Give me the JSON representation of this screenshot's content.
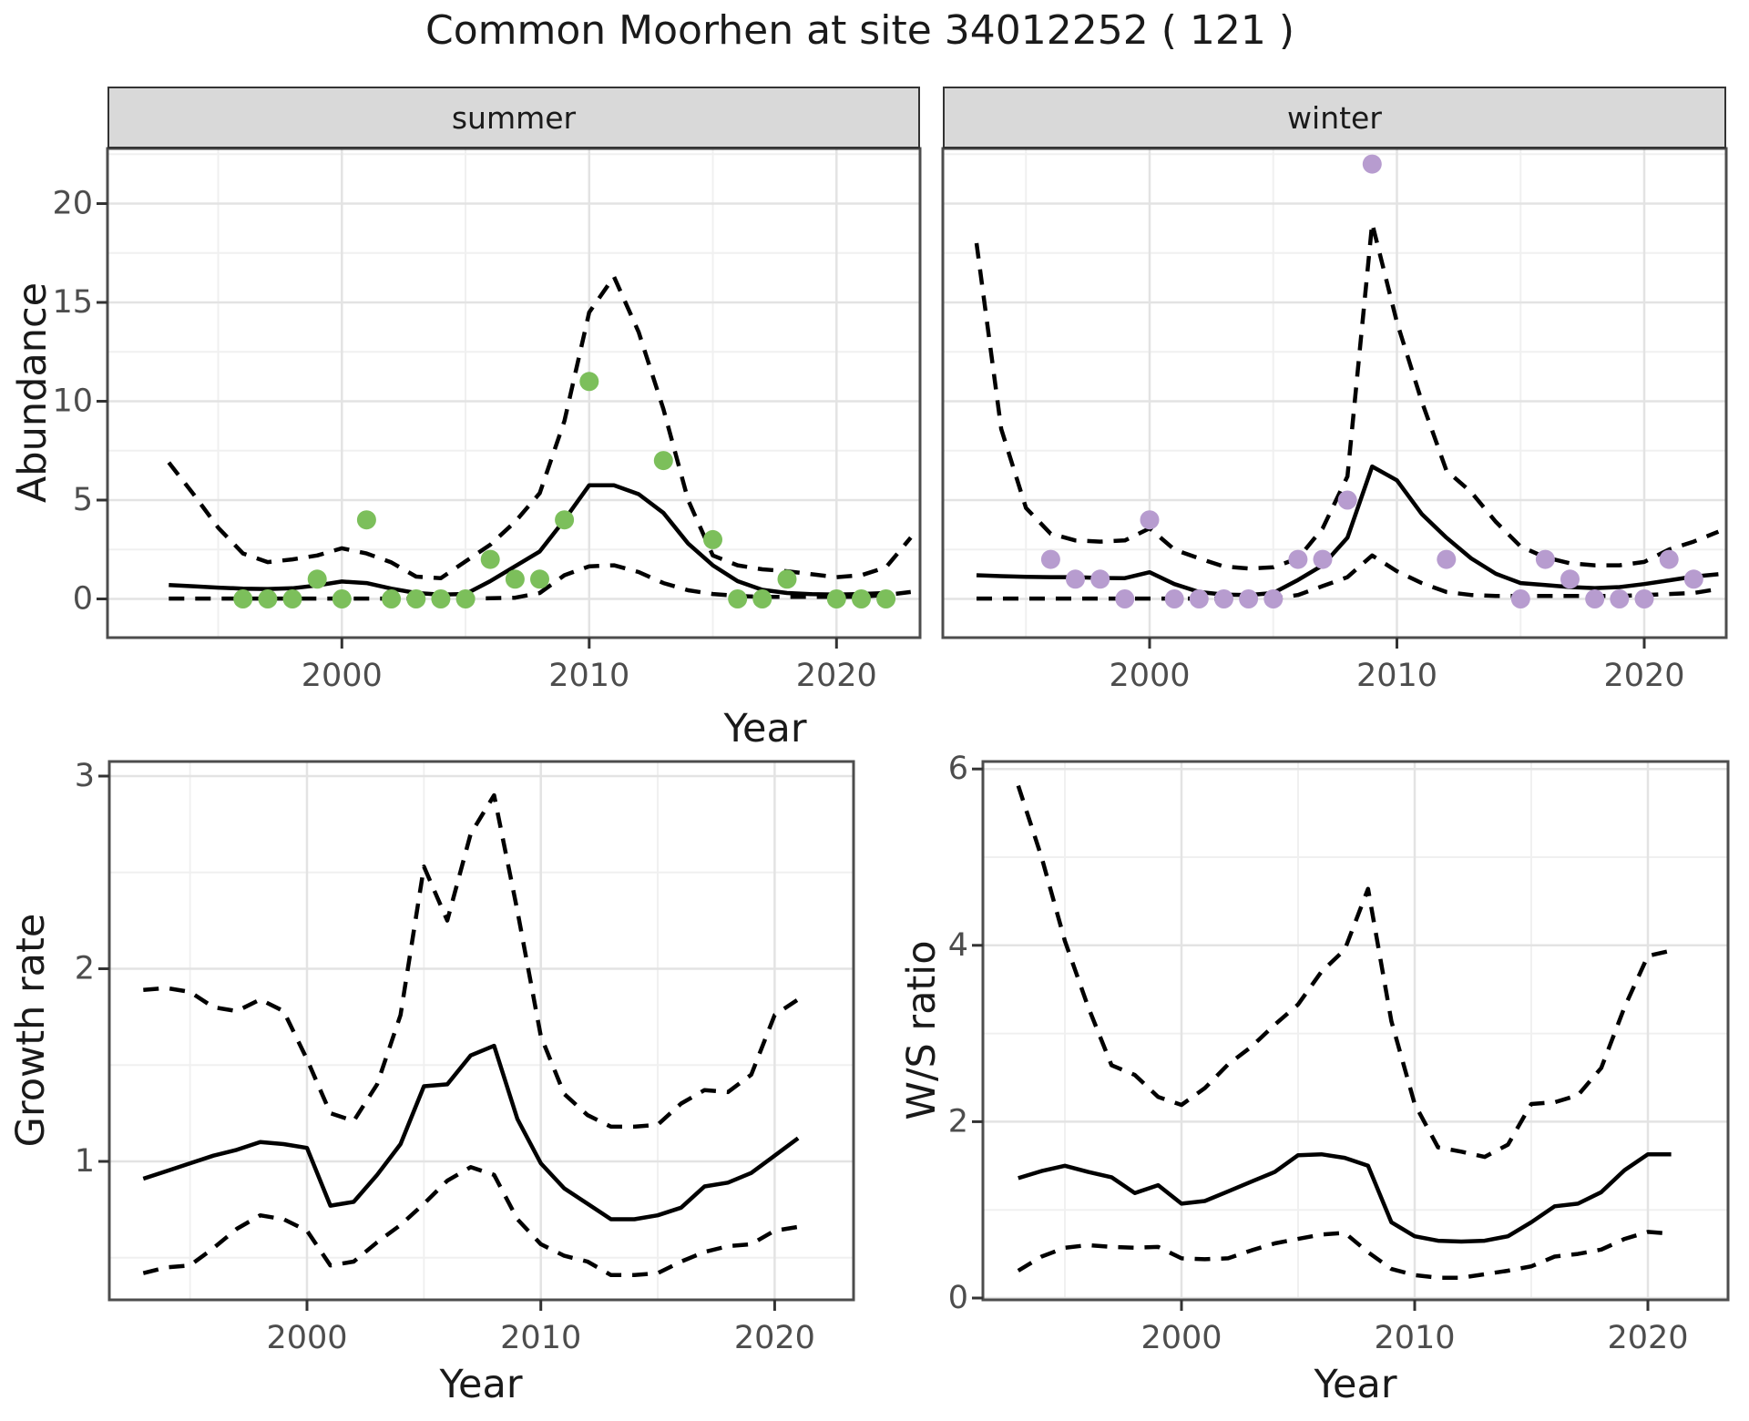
{
  "title": "Common Moorhen at site 34012252 ( 121 )",
  "colors": {
    "summer_points": "#7CBF5B",
    "winter_points": "#B79CCF",
    "line": "#000000",
    "grid_major": "#E3E3E3",
    "grid_minor": "#F0F0F0",
    "strip_bg": "#D9D9D9",
    "panel_border": "#4D4D4D",
    "tick_text": "#4D4D4D"
  },
  "chart_data": [
    {
      "id": "abundance_summer",
      "type": "scatter",
      "facet": "summer",
      "xlabel": "Year",
      "ylabel": "Abundance",
      "x_ticks": [
        2000,
        2010,
        2020
      ],
      "y_ticks": [
        0,
        5,
        10,
        15,
        20
      ],
      "xlim": [
        1990.6,
        2023.3
      ],
      "ylim": [
        -2,
        22.8
      ],
      "grid": true,
      "point_color": "#7CBF5B",
      "points": {
        "years": [
          1996,
          1997,
          1998,
          1999,
          2000,
          2001,
          2002,
          2003,
          2004,
          2005,
          2006,
          2007,
          2008,
          2009,
          2010,
          2013,
          2015,
          2016,
          2017,
          2018,
          2020,
          2021,
          2022
        ],
        "values": [
          0,
          0,
          0,
          1,
          0,
          4,
          0,
          0,
          0,
          0,
          2,
          1,
          1,
          4,
          11,
          7,
          3,
          0,
          0,
          1,
          0,
          0,
          0
        ]
      },
      "series": [
        {
          "name": "mean",
          "style": "solid",
          "start_year": 1993,
          "values": [
            0.7,
            0.64,
            0.57,
            0.52,
            0.5,
            0.54,
            0.68,
            0.88,
            0.8,
            0.52,
            0.3,
            0.22,
            0.25,
            0.9,
            1.65,
            2.4,
            4.0,
            5.75,
            5.75,
            5.3,
            4.35,
            2.8,
            1.7,
            0.9,
            0.46,
            0.3,
            0.24,
            0.22,
            0.25,
            0.3
          ]
        },
        {
          "name": "upper_ci",
          "style": "dashed",
          "start_year": 1993,
          "values": [
            6.9,
            5.3,
            3.6,
            2.3,
            1.86,
            2.0,
            2.2,
            2.56,
            2.3,
            1.85,
            1.13,
            1.05,
            1.9,
            2.74,
            3.9,
            5.35,
            9.0,
            14.5,
            16.3,
            13.5,
            9.6,
            5.0,
            2.2,
            1.7,
            1.5,
            1.4,
            1.25,
            1.1,
            1.2,
            1.6,
            3.1
          ]
        },
        {
          "name": "lower_ci",
          "style": "dashed",
          "start_year": 1993,
          "values": [
            0.02,
            0.02,
            0.02,
            0.02,
            0.02,
            0.02,
            0.02,
            0.02,
            0.02,
            0.02,
            0.02,
            0.02,
            0.02,
            0.03,
            0.06,
            0.3,
            1.2,
            1.65,
            1.7,
            1.36,
            0.8,
            0.44,
            0.25,
            0.15,
            0.1,
            0.1,
            0.1,
            0.1,
            0.12,
            0.2,
            0.35
          ]
        }
      ]
    },
    {
      "id": "abundance_winter",
      "type": "scatter",
      "facet": "winter",
      "xlabel": "Year",
      "ylabel": "Abundance",
      "x_ticks": [
        2000,
        2010,
        2020
      ],
      "y_ticks": [
        0,
        5,
        10,
        15,
        20
      ],
      "xlim": [
        1990.7,
        2023.3
      ],
      "ylim": [
        -2,
        22.8
      ],
      "grid": true,
      "point_color": "#B79CCF",
      "points": {
        "years": [
          1996,
          1997,
          1998,
          1999,
          2000,
          2001,
          2002,
          2003,
          2004,
          2005,
          2006,
          2007,
          2008,
          2009,
          2012,
          2015,
          2016,
          2017,
          2018,
          2019,
          2020,
          2021,
          2022
        ],
        "values": [
          2,
          1,
          1,
          0,
          4,
          0,
          0,
          0,
          0,
          0,
          2,
          2,
          5,
          22,
          2,
          0,
          2,
          1,
          0,
          0,
          0,
          2,
          1
        ]
      },
      "series": [
        {
          "name": "mean",
          "style": "solid",
          "start_year": 1993,
          "values": [
            1.2,
            1.15,
            1.12,
            1.1,
            1.1,
            1.06,
            1.05,
            1.35,
            0.75,
            0.35,
            0.22,
            0.2,
            0.3,
            0.96,
            1.7,
            3.1,
            6.7,
            6.0,
            4.3,
            3.1,
            2.05,
            1.27,
            0.8,
            0.7,
            0.6,
            0.55,
            0.6,
            0.75,
            0.94,
            1.13,
            1.25
          ]
        },
        {
          "name": "upper_ci",
          "style": "dashed",
          "start_year": 1993,
          "values": [
            18.0,
            8.6,
            4.6,
            3.3,
            2.96,
            2.9,
            2.96,
            3.57,
            2.5,
            2.05,
            1.64,
            1.54,
            1.6,
            2.05,
            3.57,
            6.2,
            19.0,
            14.0,
            10.0,
            6.5,
            5.4,
            3.9,
            2.65,
            2.1,
            1.8,
            1.7,
            1.7,
            1.87,
            2.5,
            2.9,
            3.4
          ]
        },
        {
          "name": "lower_ci",
          "style": "dashed",
          "start_year": 1993,
          "values": [
            0.02,
            0.02,
            0.02,
            0.02,
            0.02,
            0.02,
            0.02,
            0.02,
            0.02,
            0.02,
            0.02,
            0.02,
            0.02,
            0.2,
            0.65,
            1.1,
            2.2,
            1.4,
            0.8,
            0.35,
            0.2,
            0.15,
            0.15,
            0.15,
            0.15,
            0.15,
            0.15,
            0.2,
            0.25,
            0.3,
            0.5
          ]
        }
      ]
    },
    {
      "id": "growth_rate",
      "type": "line",
      "facet": "",
      "xlabel": "Year",
      "ylabel": "Growth rate",
      "x_ticks": [
        2000,
        2010,
        2020
      ],
      "y_ticks": [
        1,
        2,
        3
      ],
      "xlim": [
        1991.5,
        2023.3
      ],
      "ylim": [
        0.28,
        3.08
      ],
      "grid": true,
      "series": [
        {
          "name": "mean",
          "style": "solid",
          "start_year": 1993,
          "values": [
            0.91,
            0.95,
            0.99,
            1.03,
            1.06,
            1.1,
            1.09,
            1.07,
            0.77,
            0.79,
            0.93,
            1.09,
            1.39,
            1.4,
            1.55,
            1.6,
            1.22,
            0.99,
            0.86,
            0.78,
            0.7,
            0.7,
            0.72,
            0.76,
            0.87,
            0.89,
            0.94,
            1.03,
            1.12
          ]
        },
        {
          "name": "upper_ci",
          "style": "dashed",
          "start_year": 1993,
          "values": [
            1.89,
            1.9,
            1.88,
            1.8,
            1.78,
            1.84,
            1.78,
            1.53,
            1.25,
            1.21,
            1.4,
            1.76,
            2.53,
            2.25,
            2.7,
            2.9,
            2.3,
            1.65,
            1.35,
            1.24,
            1.18,
            1.18,
            1.19,
            1.3,
            1.37,
            1.36,
            1.45,
            1.76,
            1.84
          ]
        },
        {
          "name": "lower_ci",
          "style": "dashed",
          "start_year": 1993,
          "values": [
            0.42,
            0.45,
            0.46,
            0.55,
            0.65,
            0.72,
            0.7,
            0.64,
            0.46,
            0.48,
            0.58,
            0.67,
            0.78,
            0.9,
            0.97,
            0.93,
            0.7,
            0.57,
            0.51,
            0.48,
            0.41,
            0.41,
            0.42,
            0.48,
            0.53,
            0.56,
            0.57,
            0.64,
            0.66
          ]
        }
      ]
    },
    {
      "id": "ws_ratio",
      "type": "line",
      "facet": "",
      "xlabel": "Year",
      "ylabel": "W/S ratio",
      "x_ticks": [
        2000,
        2010,
        2020
      ],
      "y_ticks": [
        0,
        2,
        4,
        6
      ],
      "xlim": [
        1991.5,
        2023.4
      ],
      "ylim": [
        -0.02,
        6.08
      ],
      "grid": true,
      "series": [
        {
          "name": "mean",
          "style": "solid",
          "start_year": 1993,
          "values": [
            1.36,
            1.44,
            1.5,
            1.43,
            1.37,
            1.19,
            1.28,
            1.07,
            1.1,
            1.21,
            1.32,
            1.43,
            1.62,
            1.63,
            1.59,
            1.5,
            0.86,
            0.7,
            0.65,
            0.64,
            0.65,
            0.7,
            0.86,
            1.04,
            1.07,
            1.2,
            1.45,
            1.63,
            1.63
          ]
        },
        {
          "name": "upper_ci",
          "style": "dashed",
          "start_year": 1993,
          "values": [
            5.81,
            5.0,
            4.05,
            3.3,
            2.64,
            2.53,
            2.28,
            2.19,
            2.38,
            2.65,
            2.85,
            3.1,
            3.33,
            3.7,
            3.95,
            4.64,
            3.14,
            2.2,
            1.71,
            1.66,
            1.6,
            1.74,
            2.2,
            2.22,
            2.3,
            2.61,
            3.3,
            3.88,
            3.94
          ]
        },
        {
          "name": "lower_ci",
          "style": "dashed",
          "start_year": 1993,
          "values": [
            0.31,
            0.47,
            0.57,
            0.6,
            0.58,
            0.57,
            0.58,
            0.45,
            0.44,
            0.45,
            0.54,
            0.62,
            0.67,
            0.72,
            0.74,
            0.52,
            0.33,
            0.26,
            0.23,
            0.23,
            0.27,
            0.31,
            0.36,
            0.47,
            0.5,
            0.55,
            0.67,
            0.75,
            0.73
          ]
        }
      ]
    }
  ]
}
